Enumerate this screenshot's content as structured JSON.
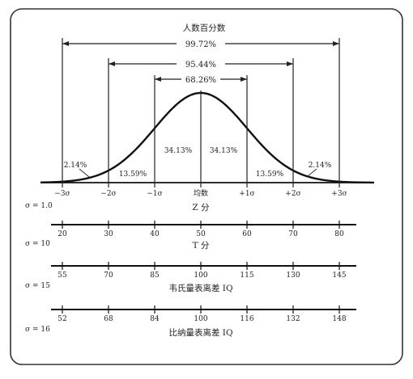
{
  "header": {
    "title": "人数百分数"
  },
  "brackets": [
    {
      "label": "99.72%"
    },
    {
      "label": "95.44%"
    },
    {
      "label": "68.26%"
    }
  ],
  "regions": {
    "left_outer": "2.14%",
    "left_mid": "13.59%",
    "left_inner": "34.13%",
    "right_inner": "34.13%",
    "right_mid": "13.59%",
    "right_outer": "2.14%"
  },
  "scales": [
    {
      "id": "z",
      "ticks": [
        "−3σ",
        "−2σ",
        "−1σ",
        "均数",
        "+1σ",
        "+2σ",
        "+3σ"
      ],
      "sigma": "σ = 1.0",
      "title": "Z 分"
    },
    {
      "id": "t",
      "ticks": [
        "20",
        "30",
        "40",
        "50",
        "60",
        "70",
        "80"
      ],
      "sigma": "σ = 10",
      "title": "T 分"
    },
    {
      "id": "stanford",
      "ticks": [
        "55",
        "70",
        "85",
        "100",
        "115",
        "130",
        "145"
      ],
      "sigma": "σ = 15",
      "title": "韦氏量表离差 IQ"
    },
    {
      "id": "binet",
      "ticks": [
        "52",
        "68",
        "84",
        "100",
        "116",
        "132",
        "148"
      ],
      "sigma": "σ = 16",
      "title": "比纳量表离差 IQ"
    }
  ]
}
